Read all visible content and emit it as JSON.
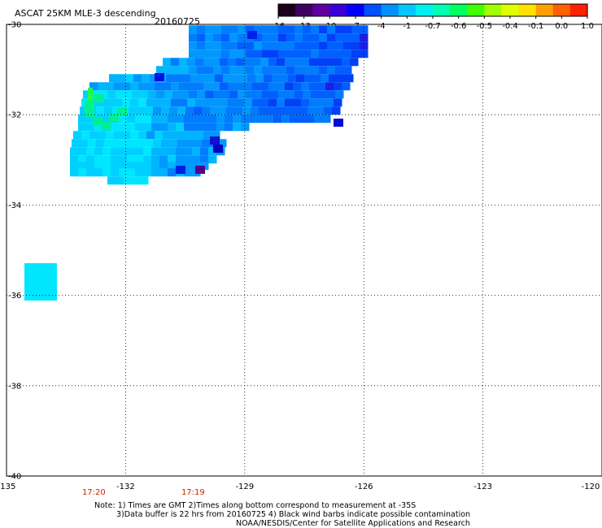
{
  "title": "ASCAT 25KM MLE-3 descending",
  "date": "20160725",
  "colorbar": {
    "labels": [
      "-16",
      "-13",
      "-10",
      "-7",
      "-4",
      "-1",
      "-0.7",
      "-0.6",
      "-0.5",
      "-0.4",
      "-0.1",
      "0.0",
      "1.0"
    ],
    "colors": [
      "#1a001a",
      "#400060",
      "#6000a0",
      "#3a00d8",
      "#0000ff",
      "#0050ff",
      "#0090ff",
      "#00c8ff",
      "#00f0f0",
      "#00ffb0",
      "#00ff60",
      "#40ff00",
      "#a0ff00",
      "#e0ff00",
      "#ffe000",
      "#ffa000",
      "#ff6000",
      "#ff2000"
    ]
  },
  "axes": {
    "lat_labels": [
      "-30",
      "-32",
      "-34",
      "-36",
      "-38",
      "-40"
    ],
    "lon_labels": [
      "-135",
      "-132",
      "-129",
      "-126",
      "-123",
      "-120"
    ],
    "lon_range": [
      -135,
      -120
    ],
    "lat_range": [
      -40,
      -30
    ]
  },
  "time_labels": [
    {
      "text": "17:20",
      "lon": -132.8
    },
    {
      "text": "17:19",
      "lon": -130.3
    }
  ],
  "time_color": "#cc2200",
  "notes": [
    "Note: 1) Times are GMT 2)Times along bottom correspond to measurement at -35S",
    "3)Data buffer is 22 hrs from 20160725 4) Black wind barbs indicate possible contamination",
    "NOAA/NESDIS/Center for Satellite Applications and Research"
  ]
}
